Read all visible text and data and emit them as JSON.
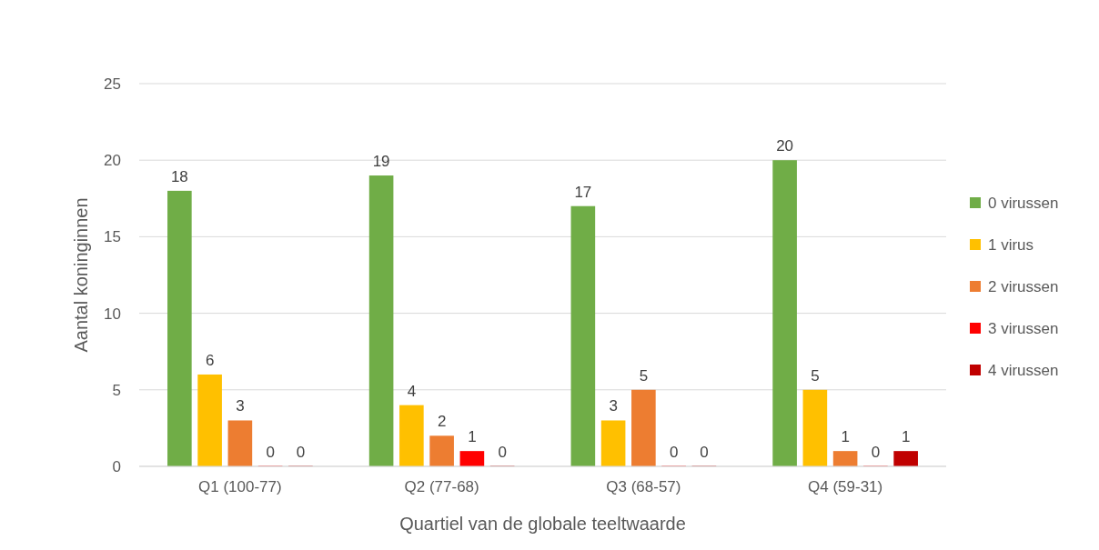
{
  "chart_data": {
    "type": "bar",
    "xlabel": "Quartiel van de globale teeltwaarde",
    "ylabel": "Aantal koninginnen",
    "categories": [
      "Q1 (100-77)",
      "Q2 (77-68)",
      "Q3 (68-57)",
      "Q4 (59-31)"
    ],
    "series": [
      {
        "name": "0 virussen",
        "color": "#70ad47",
        "values": [
          18,
          19,
          17,
          20
        ]
      },
      {
        "name": "1 virus",
        "color": "#ffc000",
        "values": [
          6,
          4,
          3,
          5
        ]
      },
      {
        "name": "2 virussen",
        "color": "#ed7d31",
        "values": [
          3,
          2,
          5,
          1
        ]
      },
      {
        "name": "3 virussen",
        "color": "#ff0000",
        "values": [
          0,
          1,
          0,
          0
        ]
      },
      {
        "name": "4 virussen",
        "color": "#c00000",
        "values": [
          0,
          0,
          0,
          1
        ]
      }
    ],
    "ylim": [
      0,
      25
    ],
    "yticks": [
      0,
      5,
      10,
      15,
      20,
      25
    ],
    "grid": "y",
    "legend": "right",
    "data_labels": true
  }
}
